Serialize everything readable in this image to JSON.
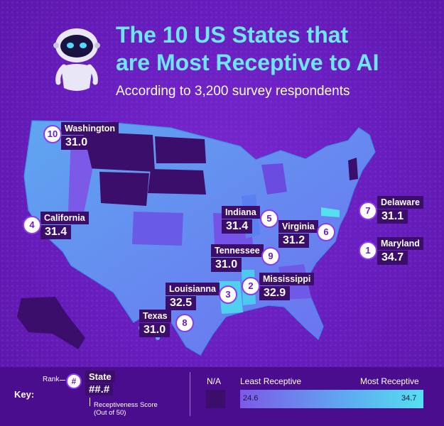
{
  "title_line1": "The 10 US States that",
  "title_line2": "are Most Receptive to AI",
  "subtitle": "According to 3,200 survey respondents",
  "colors": {
    "na": "#3b0e6c",
    "least": "#7d59e8",
    "most": "#55e0f0",
    "title": "#6ee6f7",
    "background": "#6a1fc0"
  },
  "map_values": {
    "min": 24.6,
    "max": 34.7,
    "unit": "Receptiveness Score (Out of 50)"
  },
  "states": [
    {
      "rank": "10",
      "name": "Washington",
      "score": "31.0"
    },
    {
      "rank": "4",
      "name": "California",
      "score": "31.4"
    },
    {
      "rank": "5",
      "name": "Indiana",
      "score": "31.4"
    },
    {
      "rank": "6",
      "name": "Virginia",
      "score": "31.2"
    },
    {
      "rank": "7",
      "name": "Delaware",
      "score": "31.1"
    },
    {
      "rank": "1",
      "name": "Maryland",
      "score": "34.7"
    },
    {
      "rank": "9",
      "name": "Tennessee",
      "score": "31.0"
    },
    {
      "rank": "2",
      "name": "Mississippi",
      "score": "32.9"
    },
    {
      "rank": "3",
      "name": "Louisianna",
      "score": "32.5"
    },
    {
      "rank": "8",
      "name": "Texas",
      "score": "31.0"
    }
  ],
  "key": {
    "label": "Key:",
    "rank_label": "Rank",
    "rank_symbol": "#",
    "state_label": "State",
    "score_placeholder": "##.#",
    "score_desc_line1": "Receptiveness Score",
    "score_desc_line2": "(Out of 50)",
    "na_label": "N/A",
    "least_label": "Least Receptive",
    "most_label": "Most Receptive",
    "min_value": "24.6",
    "max_value": "34.7"
  },
  "icons": {
    "robot": "robot-mascot-icon"
  }
}
